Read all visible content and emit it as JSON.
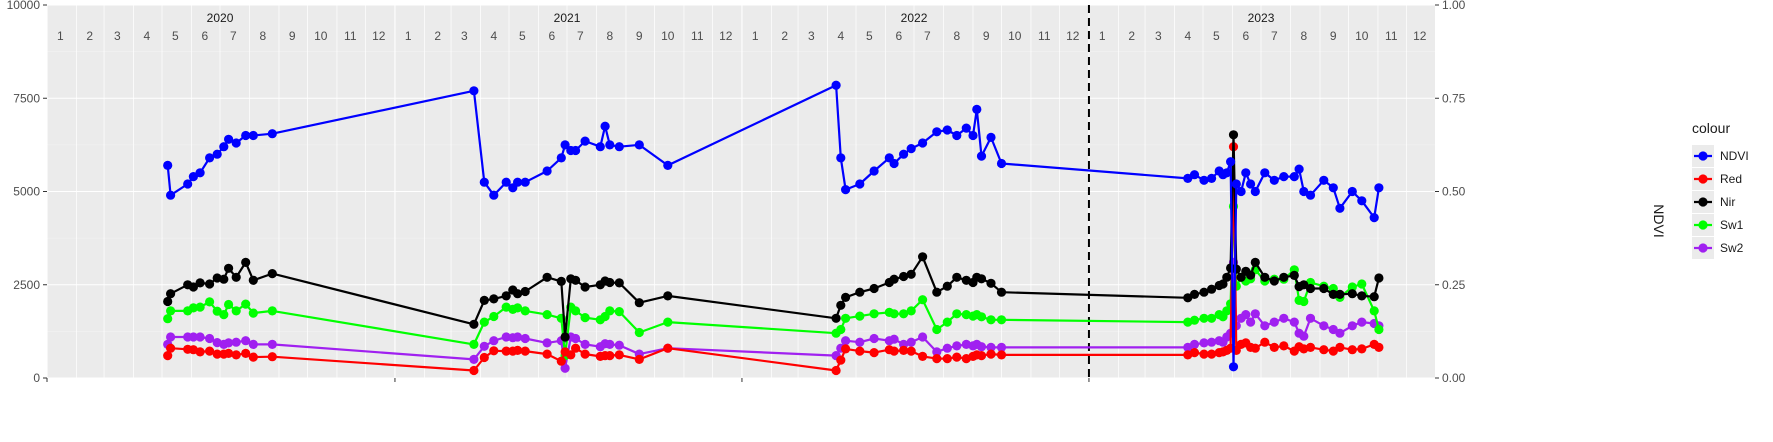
{
  "chart_data": {
    "type": "line",
    "title": "",
    "xlabel": "",
    "ylabel": "",
    "y2label": "NDVI",
    "ylim": [
      0,
      10000
    ],
    "y2lim": [
      0,
      1
    ],
    "xlim": [
      "2020-01-01",
      "2023-12-31"
    ],
    "y_ticks": [
      "0",
      "2500",
      "5000",
      "7500",
      "10000"
    ],
    "y2_ticks": [
      "0.00",
      "0.25",
      "0.50",
      "0.75",
      "1.00"
    ],
    "year_labels": [
      "2020",
      "2021",
      "2022",
      "2023"
    ],
    "month_labels": [
      "1",
      "2",
      "3",
      "4",
      "5",
      "6",
      "7",
      "8",
      "9",
      "10",
      "11",
      "12"
    ],
    "vline_date": "2023-01-01",
    "grid": true,
    "legend": {
      "title": "colour",
      "placement": "right",
      "items": [
        "NDVI",
        "Red",
        "Nir",
        "Sw1",
        "Sw2"
      ]
    },
    "colors": {
      "NDVI": "#0000ff",
      "Red": "#ff0000",
      "Nir": "#000000",
      "Sw1": "#00ff00",
      "Sw2": "#a020f0"
    },
    "x": [
      "2020-05-07",
      "2020-05-10",
      "2020-05-28",
      "2020-06-03",
      "2020-06-10",
      "2020-06-20",
      "2020-06-28",
      "2020-07-05",
      "2020-07-10",
      "2020-07-18",
      "2020-07-28",
      "2020-08-05",
      "2020-08-25",
      "2021-03-25",
      "2021-04-05",
      "2021-04-15",
      "2021-04-28",
      "2021-05-05",
      "2021-05-10",
      "2021-05-18",
      "2021-06-10",
      "2021-06-25",
      "2021-06-29",
      "2021-07-05",
      "2021-07-10",
      "2021-07-20",
      "2021-08-05",
      "2021-08-10",
      "2021-08-15",
      "2021-08-25",
      "2021-09-15",
      "2021-10-15",
      "2022-04-10",
      "2022-04-15",
      "2022-04-20",
      "2022-05-05",
      "2022-05-20",
      "2022-06-05",
      "2022-06-10",
      "2022-06-20",
      "2022-06-28",
      "2022-07-10",
      "2022-07-25",
      "2022-08-05",
      "2022-08-15",
      "2022-08-25",
      "2022-09-01",
      "2022-09-05",
      "2022-09-10",
      "2022-09-20",
      "2022-10-01",
      "2023-04-15",
      "2023-04-22",
      "2023-05-02",
      "2023-05-10",
      "2023-05-18",
      "2023-05-22",
      "2023-05-26",
      "2023-05-30",
      "2023-06-02",
      "2023-06-05",
      "2023-06-10",
      "2023-06-15",
      "2023-06-20",
      "2023-06-25",
      "2023-07-05",
      "2023-07-15",
      "2023-07-25",
      "2023-08-05",
      "2023-08-10",
      "2023-08-15",
      "2023-08-22",
      "2023-09-05",
      "2023-09-15",
      "2023-09-22",
      "2023-10-05",
      "2023-10-15",
      "2023-10-28",
      "2023-11-02"
    ],
    "series": [
      {
        "name": "NDVI",
        "axis": "right",
        "values": [
          0.57,
          0.49,
          0.52,
          0.54,
          0.55,
          0.59,
          0.6,
          0.62,
          0.64,
          0.63,
          0.65,
          0.65,
          0.655,
          0.77,
          0.525,
          0.49,
          0.525,
          0.51,
          0.525,
          0.525,
          0.555,
          0.59,
          0.625,
          0.61,
          0.61,
          0.635,
          0.62,
          0.675,
          0.625,
          0.62,
          0.625,
          0.57,
          0.785,
          0.59,
          0.505,
          0.52,
          0.555,
          0.59,
          0.575,
          0.6,
          0.615,
          0.63,
          0.66,
          0.665,
          0.65,
          0.67,
          0.65,
          0.72,
          0.595,
          0.645,
          0.575,
          0.535,
          0.545,
          0.53,
          0.535,
          0.555,
          0.545,
          0.55,
          0.58,
          0.03,
          0.52,
          0.5,
          0.55,
          0.52,
          0.5,
          0.55,
          0.53,
          0.54,
          0.54,
          0.56,
          0.5,
          0.49,
          0.53,
          0.51,
          0.455,
          0.5,
          0.475,
          0.43,
          0.51
        ]
      },
      {
        "name": "Red",
        "axis": "left",
        "values": [
          600,
          800,
          770,
          760,
          700,
          720,
          640,
          640,
          660,
          620,
          660,
          560,
          570,
          200,
          550,
          730,
          720,
          720,
          740,
          720,
          640,
          450,
          700,
          620,
          800,
          640,
          580,
          600,
          600,
          620,
          500,
          800,
          200,
          480,
          780,
          720,
          680,
          760,
          720,
          740,
          720,
          580,
          520,
          520,
          560,
          520,
          580,
          620,
          600,
          640,
          620,
          620,
          680,
          640,
          640,
          680,
          700,
          740,
          800,
          6200,
          740,
          900,
          940,
          820,
          800,
          960,
          820,
          860,
          720,
          840,
          780,
          820,
          760,
          720,
          820,
          760,
          780,
          900,
          820
        ]
      },
      {
        "name": "Nir",
        "axis": "left",
        "values": [
          2050,
          2260,
          2500,
          2440,
          2550,
          2520,
          2680,
          2650,
          2940,
          2700,
          3100,
          2620,
          2800,
          1440,
          2080,
          2120,
          2200,
          2360,
          2260,
          2320,
          2700,
          2590,
          1100,
          2660,
          2620,
          2440,
          2500,
          2600,
          2560,
          2550,
          2020,
          2200,
          1600,
          1950,
          2160,
          2300,
          2400,
          2560,
          2650,
          2720,
          2780,
          3250,
          2300,
          2460,
          2700,
          2620,
          2560,
          2700,
          2660,
          2540,
          2300,
          2150,
          2240,
          2300,
          2380,
          2480,
          2520,
          2700,
          2950,
          6520,
          2920,
          2700,
          2860,
          2760,
          3100,
          2700,
          2600,
          2700,
          2750,
          2450,
          2500,
          2400,
          2400,
          2240,
          2240,
          2260,
          2200,
          2180,
          2680
        ]
      },
      {
        "name": "Sw1",
        "axis": "left",
        "values": [
          1590,
          1800,
          1800,
          1880,
          1900,
          2040,
          1790,
          1700,
          1970,
          1800,
          1980,
          1740,
          1800,
          900,
          1500,
          1650,
          1900,
          1840,
          1880,
          1800,
          1700,
          1600,
          600,
          1900,
          1800,
          1620,
          1560,
          1650,
          1800,
          1780,
          1220,
          1500,
          1200,
          1300,
          1600,
          1660,
          1720,
          1760,
          1720,
          1720,
          1800,
          2100,
          1300,
          1500,
          1720,
          1700,
          1660,
          1700,
          1640,
          1560,
          1560,
          1500,
          1550,
          1600,
          1600,
          1700,
          1640,
          1800,
          1990,
          4600,
          2460,
          2700,
          2600,
          2660,
          2900,
          2600,
          2650,
          2650,
          2900,
          2080,
          2050,
          2560,
          2460,
          2400,
          2160,
          2440,
          2520,
          1800,
          1300
        ]
      },
      {
        "name": "Sw2",
        "axis": "left",
        "values": [
          900,
          1100,
          1100,
          1100,
          1100,
          1060,
          950,
          900,
          940,
          960,
          1000,
          900,
          900,
          500,
          850,
          1000,
          1100,
          1080,
          1100,
          1060,
          940,
          1000,
          260,
          1100,
          1060,
          900,
          840,
          920,
          900,
          880,
          640,
          800,
          600,
          800,
          1000,
          960,
          1060,
          1000,
          1040,
          900,
          960,
          1100,
          700,
          800,
          860,
          900,
          860,
          900,
          840,
          820,
          820,
          820,
          900,
          940,
          960,
          1000,
          960,
          1100,
          1200,
          3100,
          1400,
          1600,
          1700,
          1500,
          1720,
          1400,
          1500,
          1600,
          1500,
          1200,
          1120,
          1600,
          1400,
          1300,
          1200,
          1400,
          1500,
          1460,
          1400
        ]
      }
    ]
  }
}
